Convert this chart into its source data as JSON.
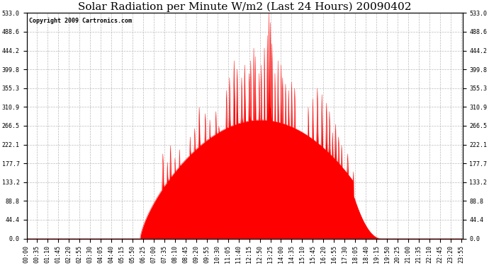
{
  "title": "Solar Radiation per Minute W/m2 (Last 24 Hours) 20090402",
  "copyright": "Copyright 2009 Cartronics.com",
  "y_max": 533.0,
  "y_min": 0.0,
  "y_ticks": [
    0.0,
    44.4,
    88.8,
    133.2,
    177.7,
    222.1,
    266.5,
    310.9,
    355.3,
    399.8,
    444.2,
    488.6,
    533.0
  ],
  "fill_color": "#FF0000",
  "line_color": "#FF0000",
  "bg_color": "#FFFFFF",
  "grid_color": "#AAAAAA",
  "dashed_line_color": "#FF0000",
  "title_fontsize": 11,
  "copyright_fontsize": 6,
  "tick_fontsize": 6,
  "xtick_interval": 35
}
